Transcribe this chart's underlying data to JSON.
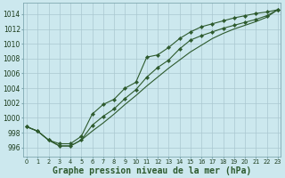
{
  "xlabel": "Graphe pression niveau de la mer (hPa)",
  "background_color": "#cce8ee",
  "grid_color": "#aac8d0",
  "line_color": "#2d5a2d",
  "hours": [
    0,
    1,
    2,
    3,
    4,
    5,
    6,
    7,
    8,
    9,
    10,
    11,
    12,
    13,
    14,
    15,
    16,
    17,
    18,
    19,
    20,
    21,
    22,
    23
  ],
  "line1_y": [
    998.8,
    998.2,
    997.0,
    996.5,
    996.5,
    997.5,
    1000.5,
    1001.8,
    1002.5,
    1004.0,
    1004.8,
    1008.2,
    1008.5,
    1009.5,
    1010.7,
    1011.6,
    1012.3,
    1012.7,
    1013.1,
    1013.5,
    1013.8,
    1014.1,
    1014.3,
    1014.6
  ],
  "line2_y": [
    998.8,
    998.2,
    997.0,
    996.2,
    996.2,
    997.0,
    999.0,
    1000.2,
    1001.2,
    1002.6,
    1003.8,
    1005.5,
    1006.8,
    1007.8,
    1009.3,
    1010.5,
    1011.1,
    1011.6,
    1012.1,
    1012.5,
    1012.9,
    1013.3,
    1013.8,
    1014.6
  ],
  "line3_y": [
    998.8,
    998.2,
    997.0,
    996.2,
    996.2,
    997.0,
    998.2,
    999.3,
    1000.5,
    1001.8,
    1003.0,
    1004.3,
    1005.5,
    1006.7,
    1007.8,
    1008.9,
    1009.8,
    1010.7,
    1011.4,
    1012.0,
    1012.5,
    1013.0,
    1013.6,
    1014.6
  ],
  "ylim_min": 994.8,
  "ylim_max": 1015.5,
  "yticks": [
    996,
    998,
    1000,
    1002,
    1004,
    1006,
    1008,
    1010,
    1012,
    1014
  ]
}
